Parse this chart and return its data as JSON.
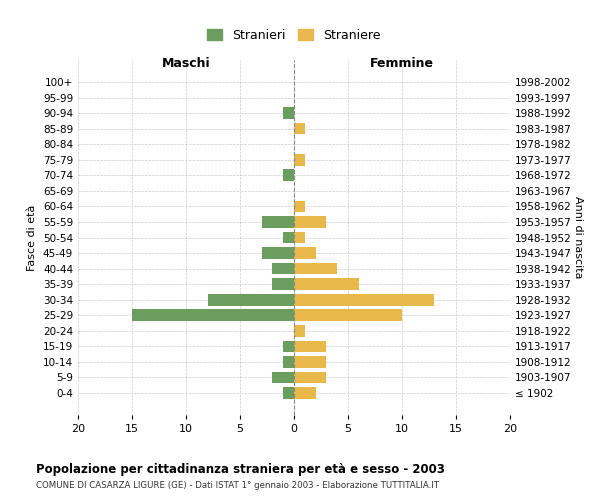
{
  "age_groups": [
    "100+",
    "95-99",
    "90-94",
    "85-89",
    "80-84",
    "75-79",
    "70-74",
    "65-69",
    "60-64",
    "55-59",
    "50-54",
    "45-49",
    "40-44",
    "35-39",
    "30-34",
    "25-29",
    "20-24",
    "15-19",
    "10-14",
    "5-9",
    "0-4"
  ],
  "birth_years": [
    "≤ 1902",
    "1903-1907",
    "1908-1912",
    "1913-1917",
    "1918-1922",
    "1923-1927",
    "1928-1932",
    "1933-1937",
    "1938-1942",
    "1943-1947",
    "1948-1952",
    "1953-1957",
    "1958-1962",
    "1963-1967",
    "1968-1972",
    "1973-1977",
    "1978-1982",
    "1983-1987",
    "1988-1992",
    "1993-1997",
    "1998-2002"
  ],
  "maschi": [
    0,
    0,
    1,
    0,
    0,
    0,
    1,
    0,
    0,
    3,
    1,
    3,
    2,
    2,
    8,
    15,
    0,
    1,
    1,
    2,
    1
  ],
  "femmine": [
    0,
    0,
    0,
    1,
    0,
    1,
    0,
    0,
    1,
    3,
    1,
    2,
    4,
    6,
    13,
    10,
    1,
    3,
    3,
    3,
    2
  ],
  "male_color": "#6b9e5e",
  "female_color": "#e8b84b",
  "background_color": "#ffffff",
  "grid_color": "#cccccc",
  "center_line_color": "#888888",
  "xlim": 20,
  "title": "Popolazione per cittadinanza straniera per età e sesso - 2003",
  "subtitle": "COMUNE DI CASARZA LIGURE (GE) - Dati ISTAT 1° gennaio 2003 - Elaborazione TUTTITALIA.IT",
  "xlabel_left": "Maschi",
  "xlabel_right": "Femmine",
  "ylabel_left": "Fasce di età",
  "ylabel_right": "Anni di nascita",
  "legend_male": "Stranieri",
  "legend_female": "Straniere"
}
